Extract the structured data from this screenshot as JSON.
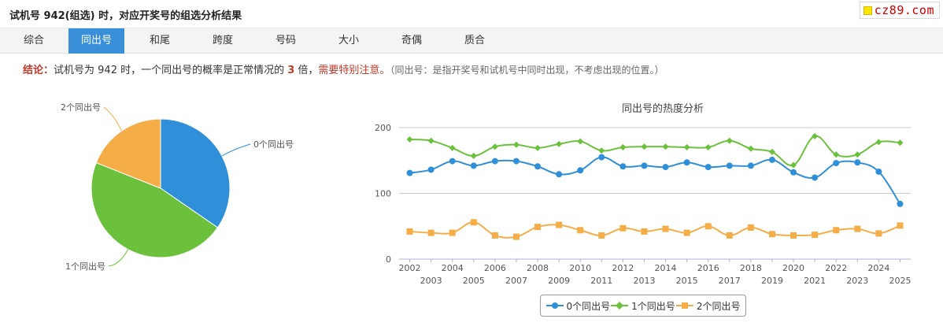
{
  "header": {
    "title": "试机号 942(组选) 时，对应开奖号的组选分析结果"
  },
  "brand": {
    "text": "cz89.com"
  },
  "tabs": [
    {
      "label": "综合",
      "active": false
    },
    {
      "label": "同出号",
      "active": true
    },
    {
      "label": "和尾",
      "active": false
    },
    {
      "label": "跨度",
      "active": false
    },
    {
      "label": "号码",
      "active": false
    },
    {
      "label": "大小",
      "active": false
    },
    {
      "label": "奇偶",
      "active": false
    },
    {
      "label": "质合",
      "active": false
    }
  ],
  "conclusion": {
    "label": "结论：",
    "text1": "试机号为 942 时，一个同出号的概率是正常情况的 ",
    "multiplier": "3",
    "text2": " 倍，",
    "warning": "需要特别注意。",
    "note": "（同出号：是指开奖号和试机号中同时出现，不考虑出现的位置。）"
  },
  "colors": {
    "series0": "#2f8fd8",
    "series1": "#6cc13c",
    "series2": "#f5ad47",
    "active_tab": "#3a8fd9",
    "highlight": "#c0392b"
  },
  "chart_data": [
    {
      "type": "pie",
      "labels": [
        "0个同出号",
        "1个同出号",
        "2个同出号"
      ],
      "values": [
        34.6,
        46.4,
        19.0
      ],
      "colors": [
        "#2f8fd8",
        "#6cc13c",
        "#f5ad47"
      ]
    },
    {
      "type": "line",
      "title": "同出号的热度分析",
      "x": [
        "2002",
        "2003",
        "2004",
        "2005",
        "2006",
        "2007",
        "2008",
        "2009",
        "2010",
        "2011",
        "2012",
        "2013",
        "2014",
        "2015",
        "2016",
        "2017",
        "2018",
        "2019",
        "2020",
        "2021",
        "2022",
        "2023",
        "2024",
        "2025"
      ],
      "ylim": [
        0,
        200
      ],
      "yticks": [
        0,
        100,
        200
      ],
      "grid": true,
      "legend": "bottom",
      "series": [
        {
          "name": "0个同出号",
          "marker": "circle",
          "color": "#2f8fd8",
          "values": [
            131,
            136,
            149,
            142,
            149,
            149,
            141,
            129,
            135,
            155,
            141,
            142,
            140,
            147,
            140,
            142,
            142,
            151,
            132,
            124,
            146,
            147,
            133,
            84
          ]
        },
        {
          "name": "1个同出号",
          "marker": "diamond",
          "color": "#6cc13c",
          "values": [
            182,
            180,
            169,
            157,
            171,
            174,
            169,
            175,
            179,
            165,
            170,
            171,
            171,
            170,
            170,
            180,
            168,
            163,
            143,
            187,
            159,
            159,
            178,
            177
          ]
        },
        {
          "name": "2个同出号",
          "marker": "square",
          "color": "#f5ad47",
          "values": [
            42,
            40,
            40,
            56,
            36,
            34,
            49,
            52,
            44,
            36,
            47,
            42,
            46,
            40,
            50,
            36,
            48,
            38,
            36,
            37,
            44,
            46,
            39,
            51
          ]
        }
      ]
    }
  ]
}
